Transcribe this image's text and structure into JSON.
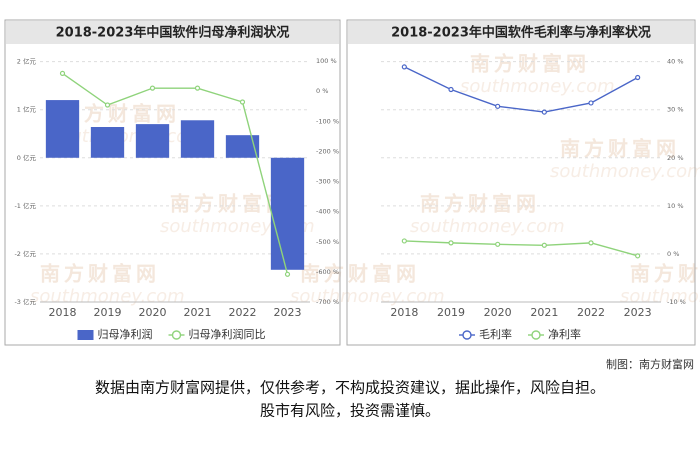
{
  "chart_data": [
    {
      "type": "bar",
      "title": "2018-2023年中国软件归母净利润状况",
      "categories": [
        "2018",
        "2019",
        "2020",
        "2021",
        "2022",
        "2023"
      ],
      "series": [
        {
          "name": "归母净利润",
          "type": "bar",
          "color": "#4a66c8",
          "values": [
            1.2,
            0.64,
            0.7,
            0.78,
            0.47,
            -2.33
          ]
        },
        {
          "name": "归母净利润同比",
          "type": "line",
          "axis": "y2",
          "color": "#8fd37b",
          "values": [
            59,
            -46,
            10,
            10,
            -36,
            -608
          ]
        }
      ],
      "ylim": [
        -3,
        2.2
      ],
      "yticks": [
        {
          "value": 2,
          "label": "2 亿元"
        },
        {
          "value": 1,
          "label": "1 亿元"
        },
        {
          "value": 0,
          "label": "0 亿元"
        },
        {
          "value": -1,
          "label": "-1 亿元"
        },
        {
          "value": -2,
          "label": "-2 亿元"
        },
        {
          "value": -3,
          "label": "-3 亿元"
        }
      ],
      "y2lim": [
        -700,
        130
      ],
      "y2ticks": [
        {
          "value": 100,
          "label": "100 %"
        },
        {
          "value": 0,
          "label": "0 %"
        },
        {
          "value": -100,
          "label": "-100 %"
        },
        {
          "value": -200,
          "label": "-200 %"
        },
        {
          "value": -300,
          "label": "-300 %"
        },
        {
          "value": -400,
          "label": "-400 %"
        },
        {
          "value": -500,
          "label": "-500 %"
        },
        {
          "value": -600,
          "label": "-600 %"
        },
        {
          "value": -700,
          "label": "-700 %"
        }
      ],
      "grid": true
    },
    {
      "type": "line",
      "title": "2018-2023年中国软件毛利率与净利率状况",
      "categories": [
        "2018",
        "2019",
        "2020",
        "2021",
        "2022",
        "2023"
      ],
      "series": [
        {
          "name": "毛利率",
          "type": "line",
          "axis": "y2",
          "color": "#4a66c8",
          "values": [
            38.9,
            34.2,
            30.7,
            29.5,
            31.4,
            36.7
          ]
        },
        {
          "name": "净利率",
          "type": "line",
          "axis": "y2",
          "color": "#8fd37b",
          "values": [
            2.7,
            2.3,
            2.0,
            1.8,
            2.3,
            -0.4
          ]
        }
      ],
      "y2lim": [
        -10,
        42
      ],
      "y2ticks": [
        {
          "value": 40,
          "label": "40 %"
        },
        {
          "value": 30,
          "label": "30 %"
        },
        {
          "value": 20,
          "label": "20 %"
        },
        {
          "value": 10,
          "label": "10 %"
        },
        {
          "value": 0,
          "label": "0 %"
        },
        {
          "value": -10,
          "label": "-10 %"
        }
      ],
      "grid": true
    }
  ],
  "watermark": [
    "南方财富网",
    "southmoney.com"
  ],
  "footer": {
    "credit": "制图：南方财富网",
    "disclaimer": [
      "数据由南方财富网提供，仅供参考，不构成投资建议，据此操作，风险自担。",
      "股市有风险，投资需谨慎。"
    ]
  }
}
